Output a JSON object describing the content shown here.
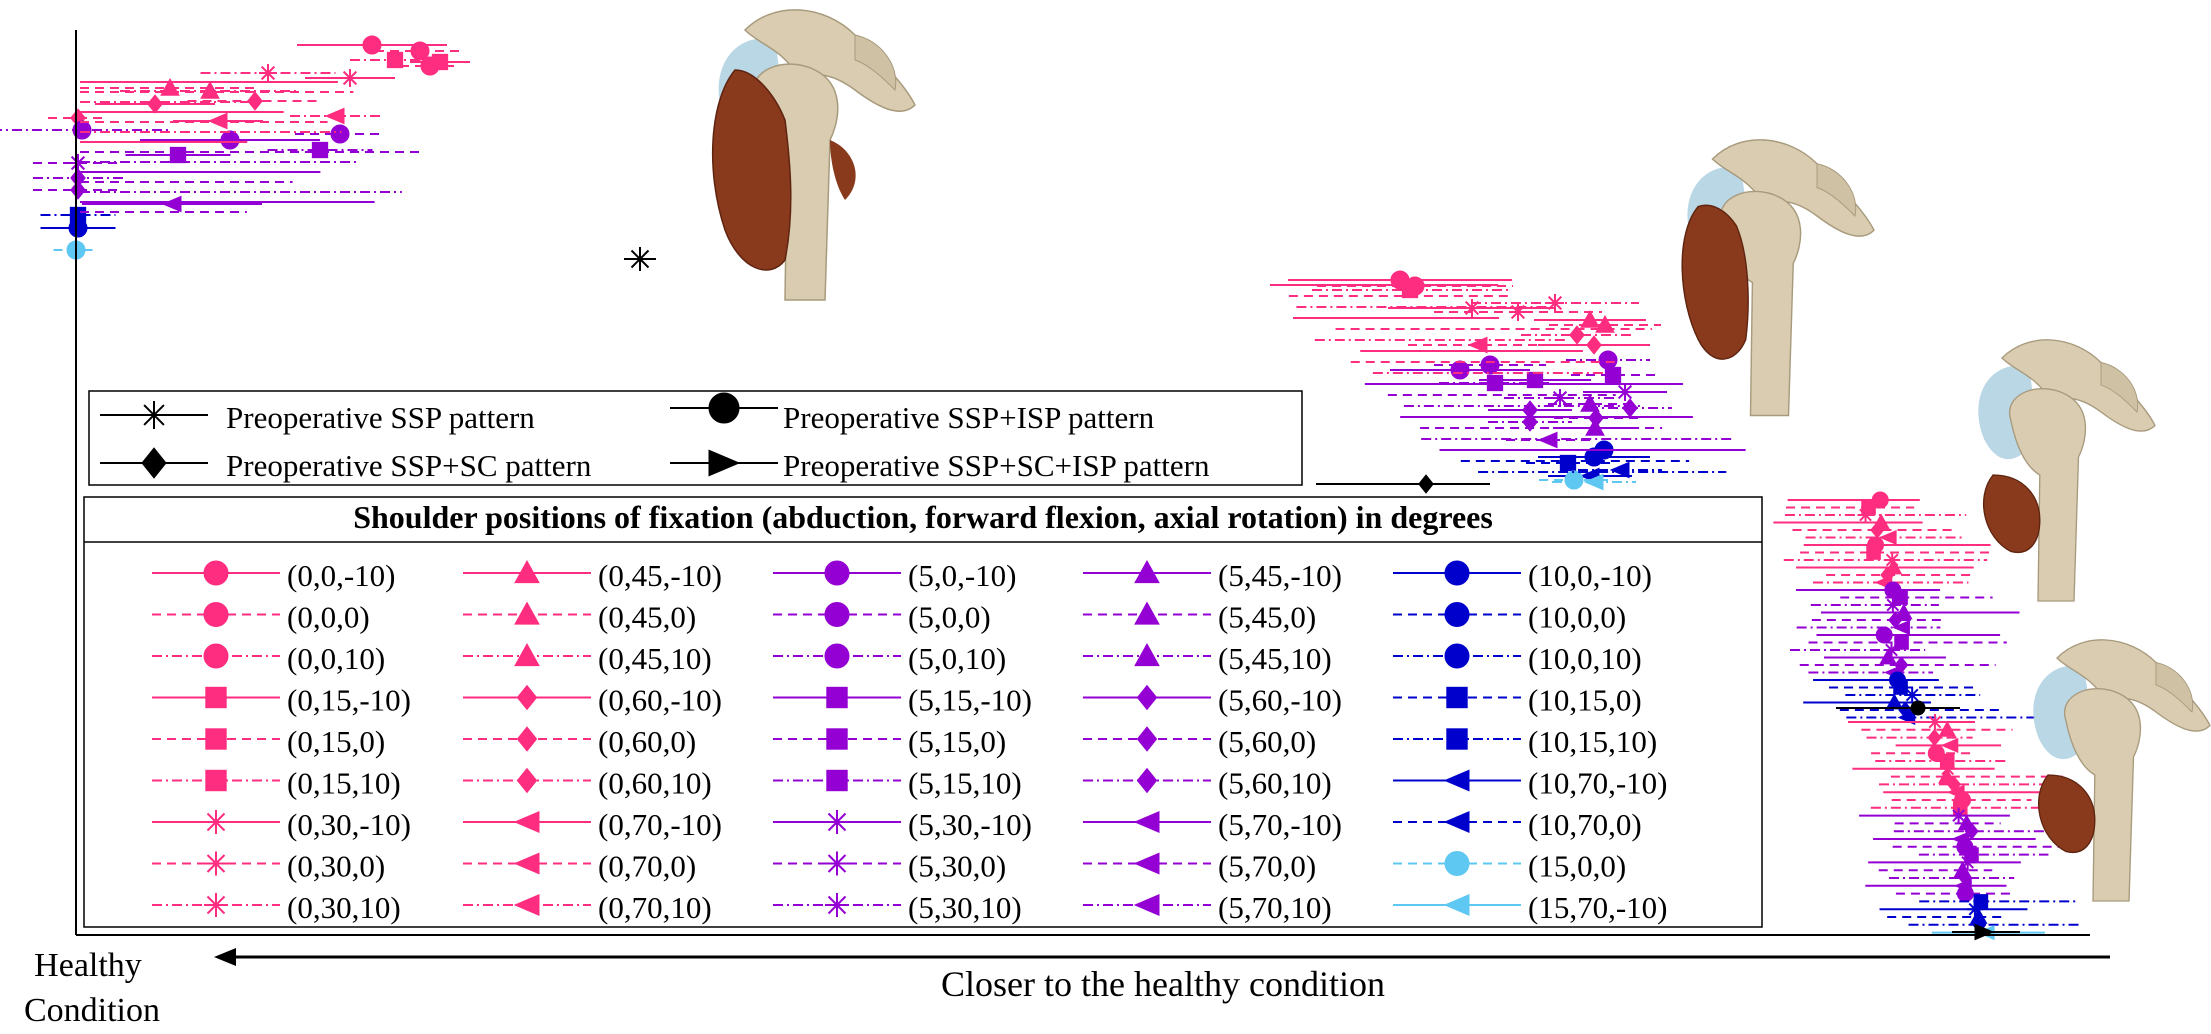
{
  "chart_data": {
    "type": "scatter",
    "description_free": true,
    "axis": {
      "left_label_line1": "Healthy",
      "left_label_line2": "Condition",
      "bottom_label": "Closer to the healthy condition"
    },
    "patterns": {
      "ssp": "Preoperative SSP pattern",
      "ssp_isp": "Preoperative SSP+ISP pattern",
      "ssp_sc": "Preoperative SSP+SC pattern",
      "ssp_sc_isp": "Preoperative SSP+SC+ISP pattern"
    },
    "legend_title": "Shoulder positions of fixation (abduction, forward flexion, axial rotation) in degrees",
    "colors": {
      "pink": "#ff2d7f",
      "purple": "#9400d3",
      "blue": "#0000cd",
      "light_blue": "#5ec8f2",
      "black": "#000000",
      "muscle": "#8a3a1c",
      "bone": "#d9ccb0",
      "cuff": "#a9cde0"
    },
    "positions": [
      {
        "label": "(0,0,-10)",
        "color": "pink",
        "marker": "circle",
        "line": "solid"
      },
      {
        "label": "(0,0,0)",
        "color": "pink",
        "marker": "circle",
        "line": "dashed"
      },
      {
        "label": "(0,0,10)",
        "color": "pink",
        "marker": "circle",
        "line": "dashdot"
      },
      {
        "label": "(0,15,-10)",
        "color": "pink",
        "marker": "square",
        "line": "solid"
      },
      {
        "label": "(0,15,0)",
        "color": "pink",
        "marker": "square",
        "line": "dashed"
      },
      {
        "label": "(0,15,10)",
        "color": "pink",
        "marker": "square",
        "line": "dashdot"
      },
      {
        "label": "(0,30,-10)",
        "color": "pink",
        "marker": "star",
        "line": "solid"
      },
      {
        "label": "(0,30,0)",
        "color": "pink",
        "marker": "star",
        "line": "dashed"
      },
      {
        "label": "(0,30,10)",
        "color": "pink",
        "marker": "star",
        "line": "dashdot"
      },
      {
        "label": "(0,45,-10)",
        "color": "pink",
        "marker": "triangle",
        "line": "solid"
      },
      {
        "label": "(0,45,0)",
        "color": "pink",
        "marker": "triangle",
        "line": "dashed"
      },
      {
        "label": "(0,45,10)",
        "color": "pink",
        "marker": "triangle",
        "line": "dashdot"
      },
      {
        "label": "(0,60,-10)",
        "color": "pink",
        "marker": "diamond",
        "line": "solid"
      },
      {
        "label": "(0,60,0)",
        "color": "pink",
        "marker": "diamond",
        "line": "dashed"
      },
      {
        "label": "(0,60,10)",
        "color": "pink",
        "marker": "diamond",
        "line": "dashdot"
      },
      {
        "label": "(0,70,-10)",
        "color": "pink",
        "marker": "tri-left",
        "line": "solid"
      },
      {
        "label": "(0,70,0)",
        "color": "pink",
        "marker": "tri-left",
        "line": "dashed"
      },
      {
        "label": "(0,70,10)",
        "color": "pink",
        "marker": "tri-left",
        "line": "dashdot"
      },
      {
        "label": "(5,0,-10)",
        "color": "purple",
        "marker": "circle",
        "line": "solid"
      },
      {
        "label": "(5,0,0)",
        "color": "purple",
        "marker": "circle",
        "line": "dashed"
      },
      {
        "label": "(5,0,10)",
        "color": "purple",
        "marker": "circle",
        "line": "dashdot"
      },
      {
        "label": "(5,15,-10)",
        "color": "purple",
        "marker": "square",
        "line": "solid"
      },
      {
        "label": "(5,15,0)",
        "color": "purple",
        "marker": "square",
        "line": "dashed"
      },
      {
        "label": "(5,15,10)",
        "color": "purple",
        "marker": "square",
        "line": "dashdot"
      },
      {
        "label": "(5,30,-10)",
        "color": "purple",
        "marker": "star",
        "line": "solid"
      },
      {
        "label": "(5,30,0)",
        "color": "purple",
        "marker": "star",
        "line": "dashed"
      },
      {
        "label": "(5,30,10)",
        "color": "purple",
        "marker": "star",
        "line": "dashdot"
      },
      {
        "label": "(5,45,-10)",
        "color": "purple",
        "marker": "triangle",
        "line": "solid"
      },
      {
        "label": "(5,45,0)",
        "color": "purple",
        "marker": "triangle",
        "line": "dashed"
      },
      {
        "label": "(5,45,10)",
        "color": "purple",
        "marker": "triangle",
        "line": "dashdot"
      },
      {
        "label": "(5,60,-10)",
        "color": "purple",
        "marker": "diamond",
        "line": "solid"
      },
      {
        "label": "(5,60,0)",
        "color": "purple",
        "marker": "diamond",
        "line": "dashed"
      },
      {
        "label": "(5,60,10)",
        "color": "purple",
        "marker": "diamond",
        "line": "dashdot"
      },
      {
        "label": "(5,70,-10)",
        "color": "purple",
        "marker": "tri-left",
        "line": "solid"
      },
      {
        "label": "(5,70,0)",
        "color": "purple",
        "marker": "tri-left",
        "line": "dashed"
      },
      {
        "label": "(5,70,10)",
        "color": "purple",
        "marker": "tri-left",
        "line": "dashdot"
      },
      {
        "label": "(10,0,-10)",
        "color": "blue",
        "marker": "circle",
        "line": "solid"
      },
      {
        "label": "(10,0,0)",
        "color": "blue",
        "marker": "circle",
        "line": "dashed"
      },
      {
        "label": "(10,0,10)",
        "color": "blue",
        "marker": "circle",
        "line": "dashdot"
      },
      {
        "label": "(10,15,0)",
        "color": "blue",
        "marker": "square",
        "line": "dashed"
      },
      {
        "label": "(10,15,10)",
        "color": "blue",
        "marker": "square",
        "line": "dashdot"
      },
      {
        "label": "(10,70,-10)",
        "color": "blue",
        "marker": "tri-left",
        "line": "solid"
      },
      {
        "label": "(10,70,0)",
        "color": "blue",
        "marker": "tri-left",
        "line": "dashed"
      },
      {
        "label": "(15,0,0)",
        "color": "light_blue",
        "marker": "circle",
        "line": "dashed"
      },
      {
        "label": "(15,70,-10)",
        "color": "light_blue",
        "marker": "tri-left",
        "line": "solid"
      }
    ]
  }
}
